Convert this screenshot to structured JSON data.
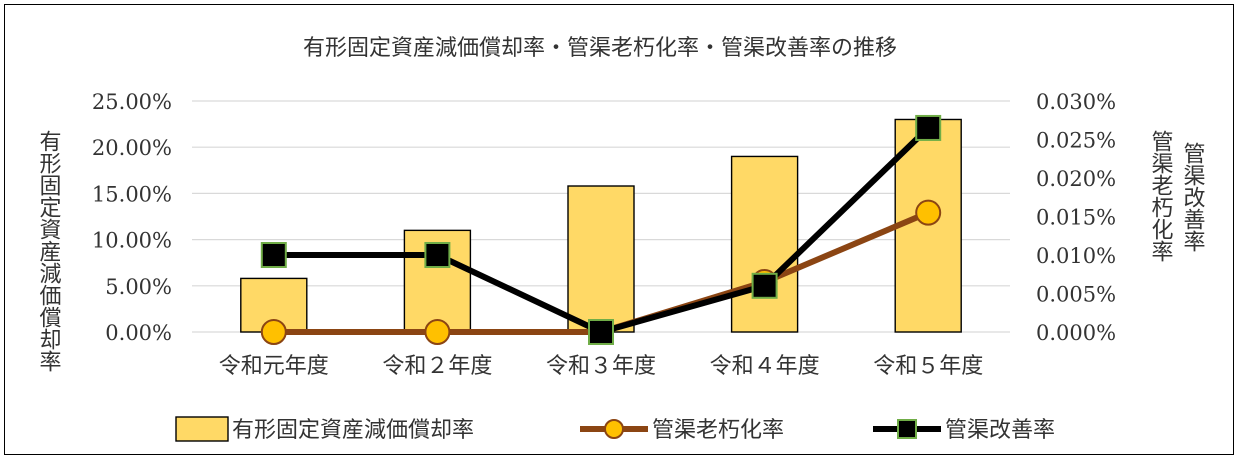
{
  "chart_data": {
    "type": "bar+line",
    "title": "有形固定資産減価償却率・管渠老朽化率・管渠改善率の推移",
    "categories": [
      "令和元年度",
      "令和２年度",
      "令和３年度",
      "令和４年度",
      "令和５年度"
    ],
    "ylabel_left": "有形固定資産減価償却率",
    "ylabel_right_outer": "管渠改善率",
    "ylabel_right_inner": "管渠老朽化率",
    "y_left": {
      "min": 0,
      "max": 25,
      "ticks": [
        0,
        5,
        10,
        15,
        20,
        25
      ],
      "tick_labels": [
        "0.00%",
        "5.00%",
        "10.00%",
        "15.00%",
        "20.00%",
        "25.00%"
      ]
    },
    "y_right": {
      "min": 0,
      "max": 0.03,
      "ticks": [
        0,
        0.005,
        0.01,
        0.015,
        0.02,
        0.025,
        0.03
      ],
      "tick_labels": [
        "0.000%",
        "0.005%",
        "0.010%",
        "0.015%",
        "0.020%",
        "0.025%",
        "0.030%"
      ]
    },
    "grid": true,
    "legend_position": "bottom",
    "series": [
      {
        "name": "有形固定資産減価償却率",
        "type": "bar",
        "axis": "left",
        "values": [
          5.8,
          11.0,
          15.8,
          19.0,
          23.0
        ],
        "color": "#ffd966",
        "stroke": "#000000"
      },
      {
        "name": "管渠老朽化率",
        "type": "line",
        "axis": "right",
        "values": [
          0.0,
          0.0,
          0.0,
          0.0065,
          0.0155
        ],
        "color": "#8b4513",
        "marker": "circle",
        "marker_fill": "#ffc000"
      },
      {
        "name": "管渠改善率",
        "type": "line",
        "axis": "right",
        "values": [
          0.01,
          0.01,
          0.0,
          0.006,
          0.0265
        ],
        "color": "#000000",
        "marker": "square",
        "marker_fill": "#000000",
        "marker_stroke": "#70ad47"
      }
    ]
  }
}
